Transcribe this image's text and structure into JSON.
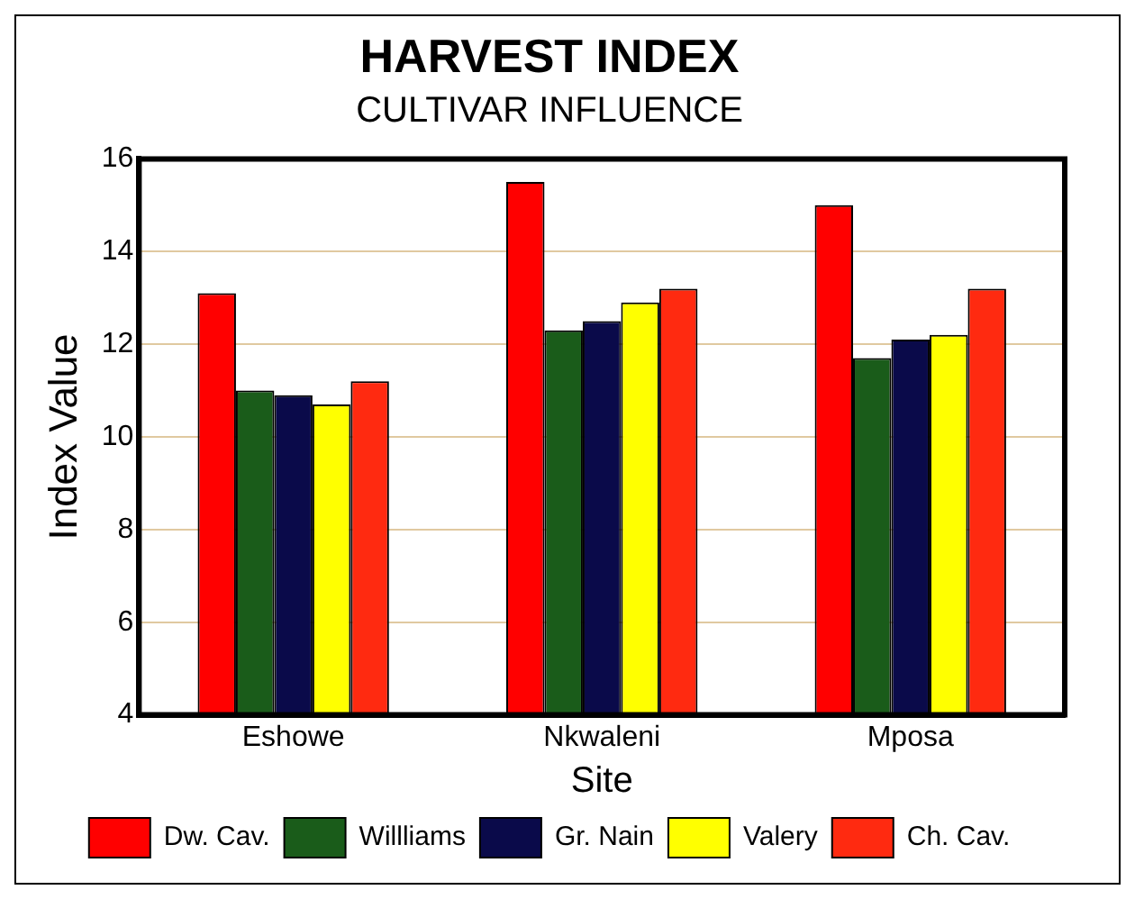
{
  "chart_data": {
    "type": "bar",
    "title": "HARVEST INDEX",
    "subtitle": "CULTIVAR INFLUENCE",
    "xlabel": "Site",
    "ylabel": "Index Value",
    "categories": [
      "Eshowe",
      "Nkwaleni",
      "Mposa"
    ],
    "series": [
      {
        "name": "Dw. Cav.",
        "color": "#ff0000",
        "values": [
          13.1,
          15.5,
          15.0
        ]
      },
      {
        "name": "Willliams",
        "color": "#1a5c1a",
        "values": [
          11.0,
          12.3,
          11.7
        ]
      },
      {
        "name": "Gr. Nain",
        "color": "#0a0a4a",
        "values": [
          10.9,
          12.5,
          12.1
        ]
      },
      {
        "name": "Valery",
        "color": "#ffff00",
        "values": [
          10.7,
          12.9,
          12.2
        ]
      },
      {
        "name": "Ch. Cav.",
        "color": "#ff2a10",
        "values": [
          11.2,
          13.2,
          13.2
        ]
      }
    ],
    "ylim": [
      4,
      16
    ],
    "yticks": [
      4,
      6,
      8,
      10,
      12,
      14,
      16
    ],
    "grid": "y",
    "legend": "bottom"
  }
}
